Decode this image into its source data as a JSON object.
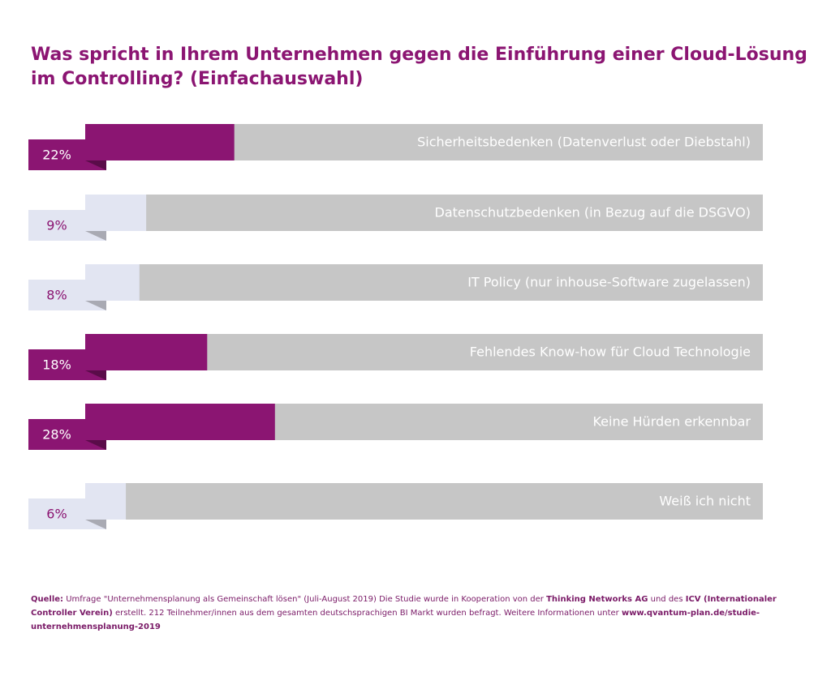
{
  "chart_data": {
    "type": "ribbon-bar",
    "title_lines": [
      "Was spricht in Ihrem Unternehmen gegen die Einführung einer Cloud-Lösung",
      "im Controlling? (Einfachauswahl)"
    ],
    "categories": [
      "Sicherheitsbedenken (Datenverlust oder Diebstahl)",
      "Datenschutzbedenken (in Bezug auf die DSGVO)",
      "IT Policy (nur inhouse-Software zugelassen)",
      "Fehlendes Know-how für Cloud Technologie",
      "Keine Hürden erkennbar",
      "Weiß ich nicht"
    ],
    "values": [
      22,
      9,
      8,
      18,
      28,
      6
    ],
    "value_labels": [
      "22%",
      "9%",
      "8%",
      "18%",
      "28%",
      "6%"
    ],
    "colors": [
      "#8b1572",
      "#e2e5f2",
      "#e2e5f2",
      "#8b1572",
      "#8b1572",
      "#e2e5f2"
    ],
    "fold_colors": [
      "#5a0c49",
      "#a9aab3",
      "#a9aab3",
      "#5a0c49",
      "#5a0c49",
      "#a9aab3"
    ],
    "label_colors": [
      "#ffffff",
      "#8b1572",
      "#8b1572",
      "#ffffff",
      "#ffffff",
      "#8b1572"
    ],
    "track_color": "#c6c6c6",
    "xlim": [
      0,
      100
    ],
    "source": [
      {
        "text": "Quelle:",
        "bold": true
      },
      {
        "text": " Umfrage \"Unternehmensplanung als Gemeinschaft lösen\" (Juli-August 2019) Die Studie wurde in Kooperation von der ",
        "bold": false
      },
      {
        "text": "Thinking Networks AG",
        "bold": true
      },
      {
        "text": " und des ",
        "bold": false
      },
      {
        "text": "ICV (Internationaler Controller Verein)",
        "bold": true
      },
      {
        "text": " erstellt. 212 Teilnehmer/innen aus dem gesamten deutschsprachigen BI Markt wurden befragt. Weitere Informationen unter ",
        "bold": false
      },
      {
        "text": "www.qvantum-plan.de/studie-unternehmensplanung-2019",
        "bold": true
      }
    ]
  }
}
